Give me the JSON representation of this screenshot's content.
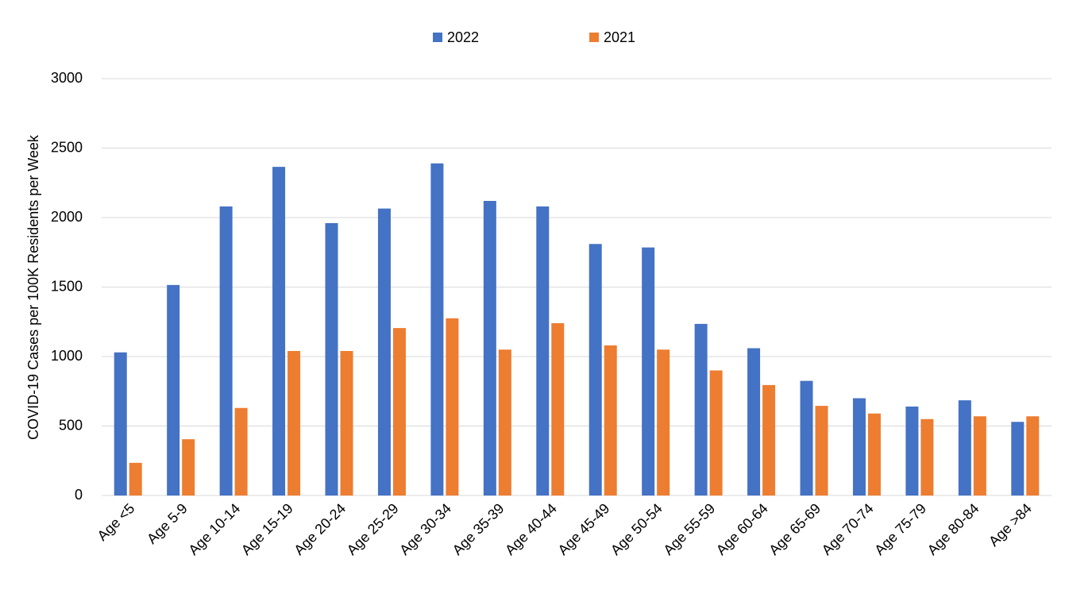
{
  "chart_data": {
    "type": "bar",
    "y_label": "COVID-19 Cases per 100K Residents per Week",
    "categories": [
      "Age <5",
      "Age 5-9",
      "Age 10-14",
      "Age 15-19",
      "Age 20-24",
      "Age 25-29",
      "Age 30-34",
      "Age 35-39",
      "Age 40-44",
      "Age 45-49",
      "Age 50-54",
      "Age 55-59",
      "Age 60-64",
      "Age 65-69",
      "Age 70-74",
      "Age 75-79",
      "Age 80-84",
      "Age >84"
    ],
    "series": [
      {
        "name": "2022",
        "color": "#4472c4",
        "values": [
          1030,
          1515,
          2080,
          2365,
          1960,
          2065,
          2390,
          2120,
          2080,
          1810,
          1785,
          1235,
          1060,
          825,
          700,
          640,
          685,
          530
        ]
      },
      {
        "name": "2021",
        "color": "#ed7d31",
        "values": [
          235,
          405,
          630,
          1040,
          1040,
          1205,
          1275,
          1050,
          1240,
          1080,
          1050,
          900,
          795,
          645,
          590,
          550,
          570,
          570
        ]
      }
    ],
    "ylim": [
      0,
      3000
    ],
    "yticks": [
      0,
      500,
      1000,
      1500,
      2000,
      2500,
      3000
    ],
    "grid": true,
    "legend": "top"
  }
}
